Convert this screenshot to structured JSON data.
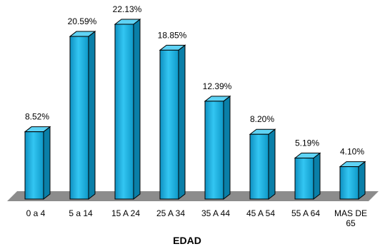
{
  "chart_data": {
    "type": "bar",
    "categories": [
      "0 a 4",
      "5 a 14",
      "15  A 24",
      "25 A 34",
      "35 A 44",
      "45 A 54",
      "55 A 64",
      "MAS DE\n65"
    ],
    "values": [
      8.52,
      20.59,
      22.13,
      18.85,
      12.39,
      8.2,
      5.19,
      4.1
    ],
    "value_labels": [
      "8.52%",
      "20.59%",
      "22.13%",
      "18.85%",
      "12.39%",
      "8.20%",
      "5.19%",
      "4.10%"
    ],
    "xlabel": "EDAD",
    "ylabel": "",
    "ylim": [
      0,
      22.13
    ],
    "grid": false,
    "legend": "none",
    "colors": {
      "bar_front": "#1ab4e6",
      "bar_side": "#0a7fa8",
      "bar_top": "#5fd3f5",
      "floor": "#8c8c8c"
    }
  }
}
